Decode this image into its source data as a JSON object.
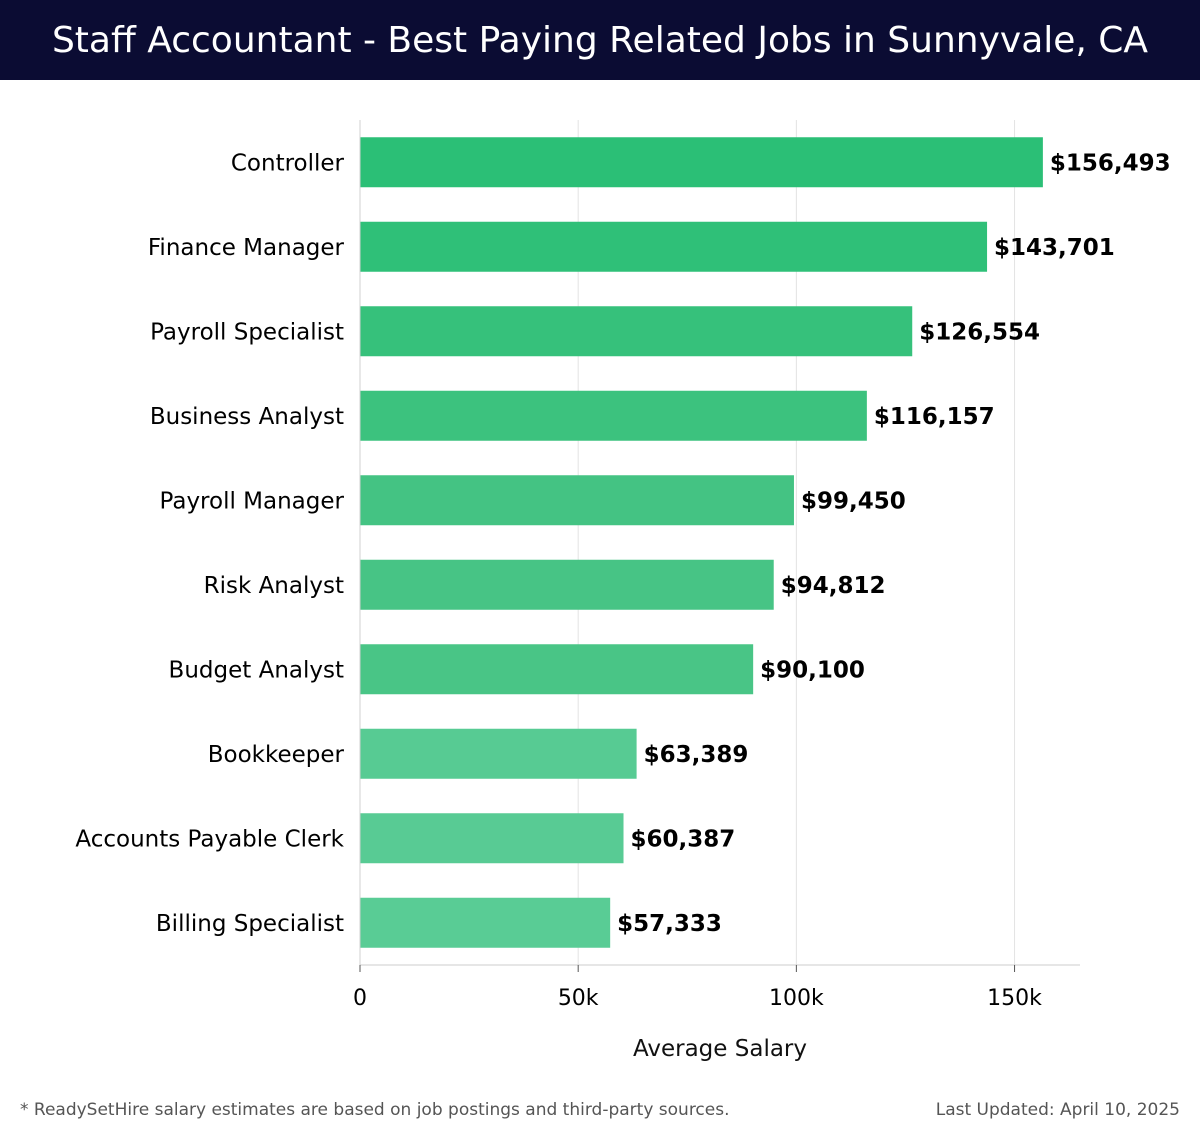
{
  "header": {
    "title": "Staff Accountant - Best Paying Related Jobs in Sunnyvale, CA"
  },
  "chart_data": {
    "type": "bar",
    "orientation": "horizontal",
    "categories": [
      "Controller",
      "Finance Manager",
      "Payroll Specialist",
      "Business Analyst",
      "Payroll Manager",
      "Risk Analyst",
      "Budget Analyst",
      "Bookkeeper",
      "Accounts Payable Clerk",
      "Billing Specialist"
    ],
    "values": [
      156493,
      143701,
      126554,
      116157,
      99450,
      94812,
      90100,
      63389,
      60387,
      57333
    ],
    "value_labels": [
      "$156,493",
      "$143,701",
      "$126,554",
      "$116,157",
      "$99,450",
      "$94,812",
      "$90,100",
      "$63,389",
      "$60,387",
      "$57,333"
    ],
    "bar_colors": [
      "#2bbf76",
      "#2fc078",
      "#36c17b",
      "#3cc27e",
      "#44c383",
      "#47c485",
      "#49c586",
      "#57cb93",
      "#58cb94",
      "#59cc95"
    ],
    "xlabel": "Average Salary",
    "ylabel": "",
    "xlim": [
      0,
      165000
    ],
    "xticks": [
      0,
      50000,
      100000,
      150000
    ],
    "xtick_labels": [
      "0",
      "50k",
      "100k",
      "150k"
    ],
    "grid": "vertical",
    "legend": "none"
  },
  "footer": {
    "note": "* ReadySetHire salary estimates are based on job postings and third-party sources.",
    "last_updated": "Last Updated: April 10, 2025"
  }
}
